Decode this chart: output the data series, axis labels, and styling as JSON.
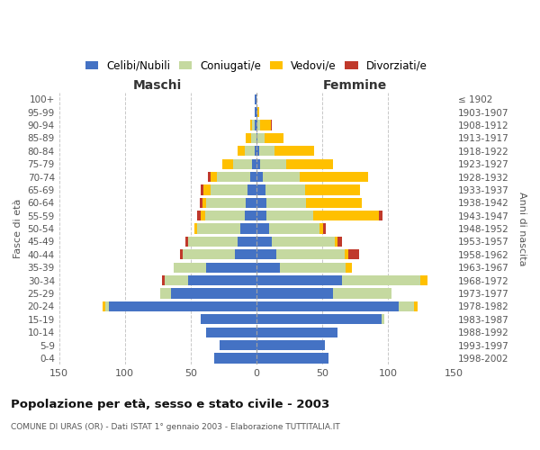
{
  "age_groups": [
    "0-4",
    "5-9",
    "10-14",
    "15-19",
    "20-24",
    "25-29",
    "30-34",
    "35-39",
    "40-44",
    "45-49",
    "50-54",
    "55-59",
    "60-64",
    "65-69",
    "70-74",
    "75-79",
    "80-84",
    "85-89",
    "90-94",
    "95-99",
    "100+"
  ],
  "birth_years": [
    "1998-2002",
    "1993-1997",
    "1988-1992",
    "1983-1987",
    "1978-1982",
    "1973-1977",
    "1968-1972",
    "1963-1967",
    "1958-1962",
    "1953-1957",
    "1948-1952",
    "1943-1947",
    "1938-1942",
    "1933-1937",
    "1928-1932",
    "1923-1927",
    "1918-1922",
    "1913-1917",
    "1908-1912",
    "1903-1907",
    "≤ 1902"
  ],
  "maschi_celibi": [
    32,
    28,
    38,
    42,
    112,
    65,
    52,
    38,
    16,
    14,
    12,
    9,
    8,
    7,
    5,
    3,
    1,
    0,
    1,
    1,
    1
  ],
  "maschi_coniugati": [
    0,
    0,
    0,
    0,
    3,
    8,
    18,
    25,
    40,
    38,
    33,
    30,
    30,
    28,
    25,
    15,
    8,
    4,
    2,
    0,
    0
  ],
  "maschi_vedovi": [
    0,
    0,
    0,
    0,
    2,
    0,
    0,
    0,
    0,
    0,
    2,
    3,
    3,
    5,
    5,
    8,
    5,
    4,
    2,
    0,
    0
  ],
  "maschi_divorziati": [
    0,
    0,
    0,
    0,
    0,
    0,
    2,
    0,
    2,
    2,
    0,
    3,
    2,
    2,
    2,
    0,
    0,
    0,
    0,
    0,
    0
  ],
  "femmine_celibi": [
    55,
    52,
    62,
    95,
    108,
    58,
    65,
    18,
    15,
    12,
    10,
    8,
    8,
    7,
    5,
    3,
    2,
    1,
    1,
    1,
    0
  ],
  "femmine_coniugati": [
    0,
    0,
    0,
    2,
    12,
    45,
    60,
    50,
    52,
    48,
    38,
    35,
    30,
    30,
    28,
    20,
    12,
    5,
    2,
    0,
    0
  ],
  "femmine_vedovi": [
    0,
    0,
    0,
    0,
    3,
    0,
    5,
    5,
    3,
    2,
    3,
    50,
    42,
    42,
    52,
    35,
    30,
    15,
    8,
    1,
    0
  ],
  "femmine_divorziati": [
    0,
    0,
    0,
    0,
    0,
    0,
    0,
    0,
    8,
    3,
    2,
    3,
    0,
    0,
    0,
    0,
    0,
    0,
    1,
    0,
    0
  ],
  "colors": {
    "celibi": "#4472c4",
    "coniugati": "#c5d9a0",
    "vedovi": "#ffc000",
    "divorziati": "#c0392b"
  },
  "xlim": 150,
  "title": "Popolazione per età, sesso e stato civile - 2003",
  "subtitle": "COMUNE DI URAS (OR) - Dati ISTAT 1° gennaio 2003 - Elaborazione TUTTITALIA.IT",
  "ylabel_left": "Fasce di età",
  "ylabel_right": "Anni di nascita",
  "xlabel_left": "Maschi",
  "xlabel_right": "Femmine",
  "legend_labels": [
    "Celibi/Nubili",
    "Coniugati/e",
    "Vedovi/e",
    "Divorziati/e"
  ],
  "bg_color": "#ffffff",
  "grid_color": "#c8c8c8"
}
